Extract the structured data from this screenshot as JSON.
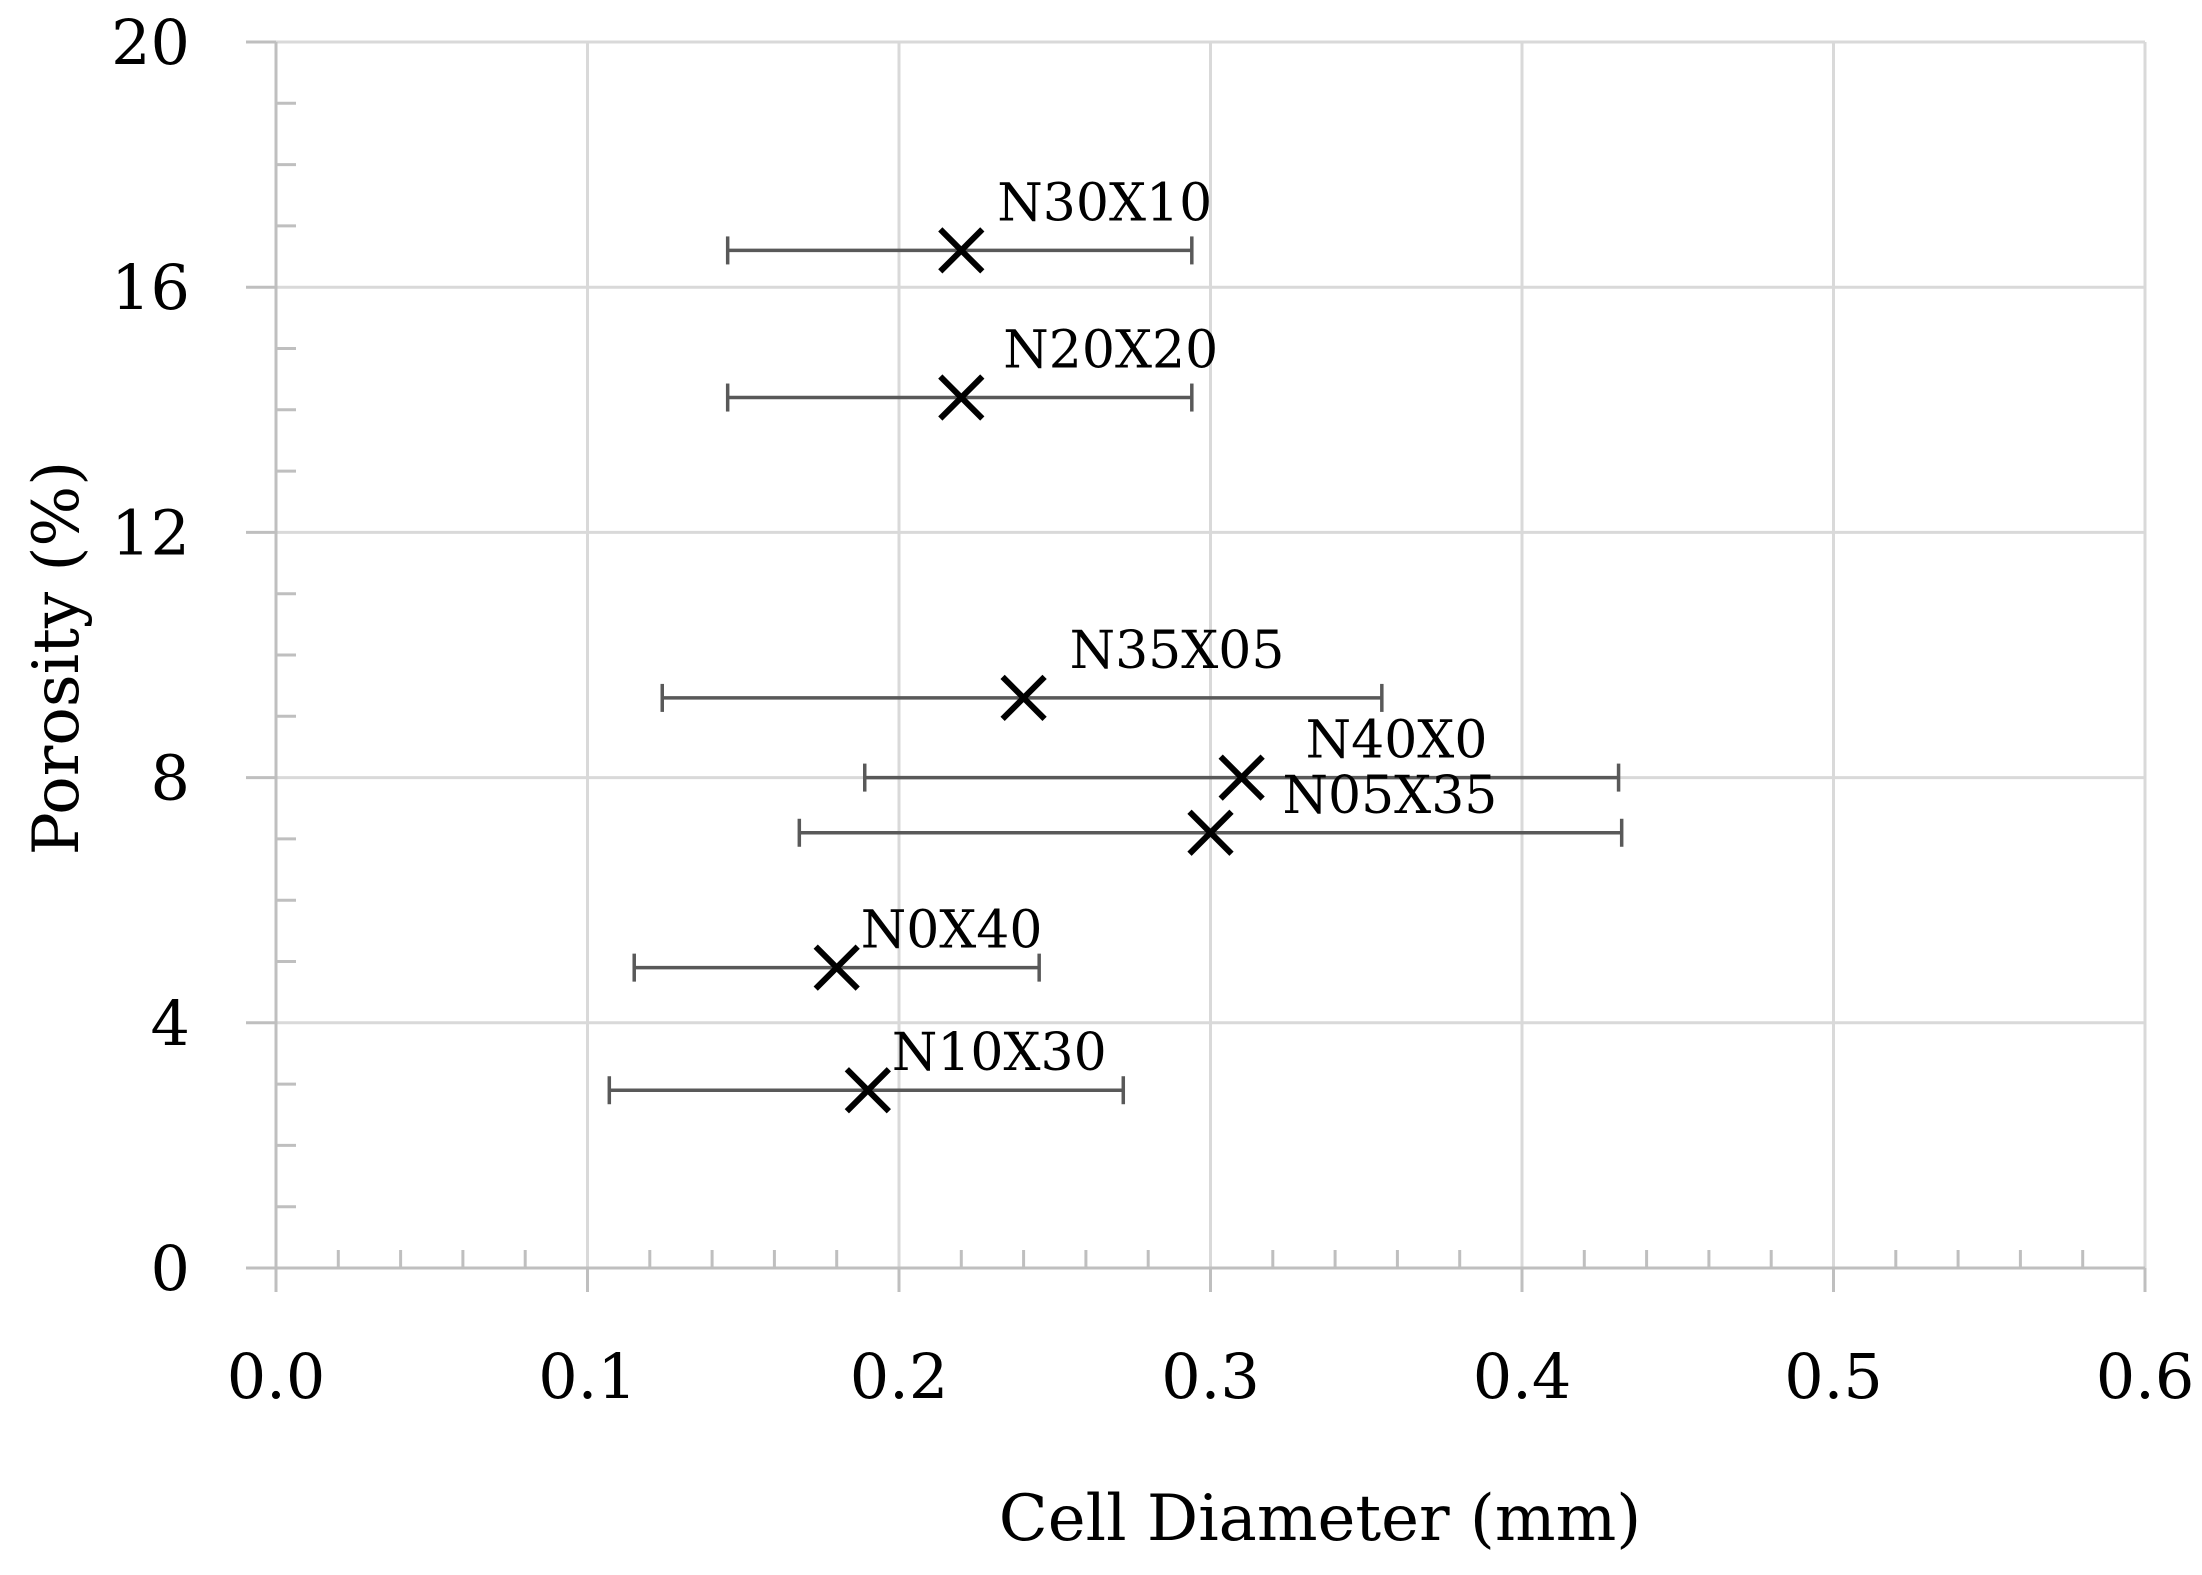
{
  "chart_data": {
    "type": "scatter",
    "title": "",
    "xlabel": "Cell Diameter (mm)",
    "ylabel": "Porosity (%)",
    "xlim": [
      0.0,
      0.6
    ],
    "ylim": [
      0,
      20
    ],
    "x_ticks": [
      "0.0",
      "0.1",
      "0.2",
      "0.3",
      "0.4",
      "0.5",
      "0.6"
    ],
    "y_ticks": [
      "0",
      "4",
      "8",
      "12",
      "16",
      "20"
    ],
    "grid": true,
    "marker": "x",
    "points": [
      {
        "label": "N30X10",
        "x": 0.22,
        "y": 16.6,
        "x_err_low": 0.145,
        "x_err_high": 0.294
      },
      {
        "label": "N20X20",
        "x": 0.22,
        "y": 14.2,
        "x_err_low": 0.145,
        "x_err_high": 0.294
      },
      {
        "label": "N35X05",
        "x": 0.24,
        "y": 9.3,
        "x_err_low": 0.124,
        "x_err_high": 0.355
      },
      {
        "label": "N40X0",
        "x": 0.31,
        "y": 8.0,
        "x_err_low": 0.189,
        "x_err_high": 0.431
      },
      {
        "label": "N05X35",
        "x": 0.3,
        "y": 7.1,
        "x_err_low": 0.168,
        "x_err_high": 0.432
      },
      {
        "label": "N0X40",
        "x": 0.18,
        "y": 4.9,
        "x_err_low": 0.115,
        "x_err_high": 0.245
      },
      {
        "label": "N10X30",
        "x": 0.19,
        "y": 2.9,
        "x_err_low": 0.107,
        "x_err_high": 0.272
      }
    ]
  }
}
